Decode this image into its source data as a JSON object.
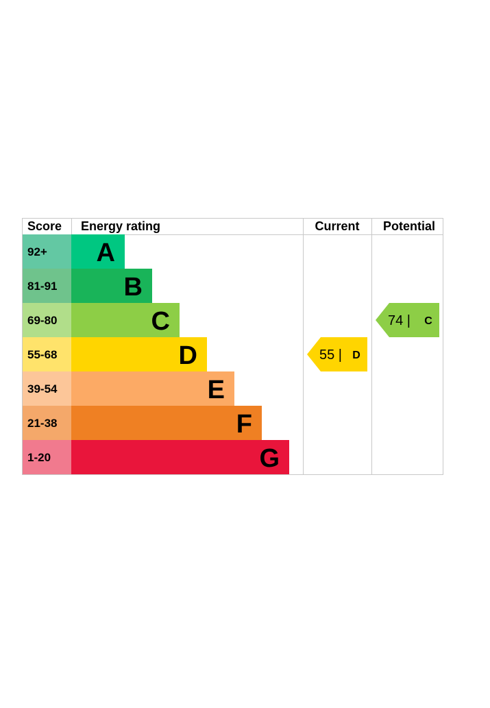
{
  "chart_data": {
    "type": "table",
    "headers": {
      "score": "Score",
      "rating": "Energy rating",
      "current": "Current",
      "potential": "Potential"
    },
    "bands": [
      {
        "range": "92+",
        "letter": "A",
        "color": "#00c781",
        "score_color": "#63c8a3"
      },
      {
        "range": "81-91",
        "letter": "B",
        "color": "#19b459",
        "score_color": "#6fc38c"
      },
      {
        "range": "69-80",
        "letter": "C",
        "color": "#8dce46",
        "score_color": "#b1de8a"
      },
      {
        "range": "55-68",
        "letter": "D",
        "color": "#ffd500",
        "score_color": "#ffe36b"
      },
      {
        "range": "39-54",
        "letter": "E",
        "color": "#fcaa65",
        "score_color": "#fcc699"
      },
      {
        "range": "21-38",
        "letter": "F",
        "color": "#ef8023",
        "score_color": "#f4a86a"
      },
      {
        "range": "1-20",
        "letter": "G",
        "color": "#e9153b",
        "score_color": "#f17a8e"
      }
    ],
    "current": {
      "value": 55,
      "separator": "|",
      "letter": "D",
      "color": "#ffd500"
    },
    "potential": {
      "value": 74,
      "separator": "|",
      "letter": "C",
      "color": "#8dce46"
    }
  }
}
